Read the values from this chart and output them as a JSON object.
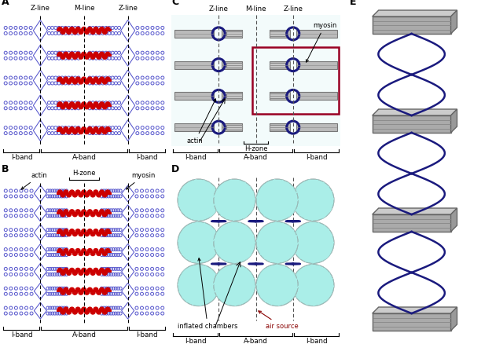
{
  "colors": {
    "red": "#CC0000",
    "dark_red": "#AA0000",
    "blue_actin": "#5555cc",
    "dark_blue": "#1a1a7e",
    "cyan_fill": "#aaeee8",
    "cyan_hatch": "#55cccc",
    "gray_block": "#aaaaaa",
    "gray_block_edge": "#666666",
    "gray_block_light": "#cccccc",
    "highlight_red": "#990022",
    "black": "#000000",
    "white": "#ffffff",
    "light_cyan_bg": "#ddf5f5"
  },
  "layout": {
    "pA": [
      2,
      5,
      210,
      205
    ],
    "pB": [
      2,
      218,
      210,
      218
    ],
    "pC": [
      218,
      5,
      215,
      205
    ],
    "pD": [
      218,
      218,
      215,
      218
    ],
    "pE": [
      443,
      5,
      192,
      428
    ]
  }
}
